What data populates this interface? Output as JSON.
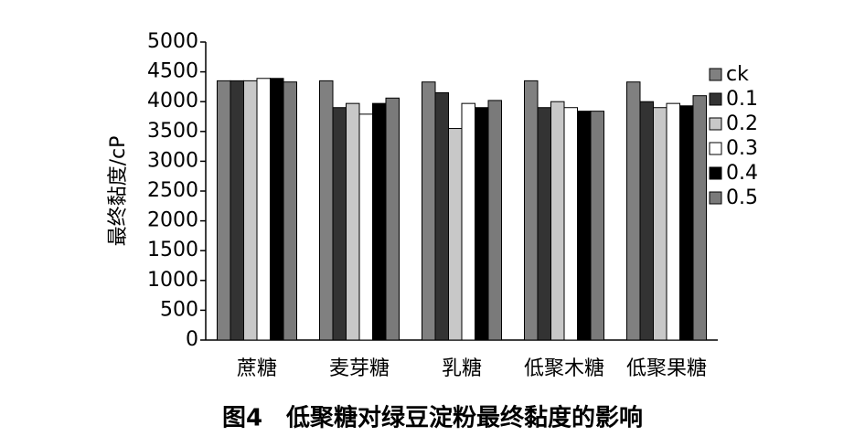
{
  "chart_data": {
    "type": "bar",
    "title": "图4　低聚糖对绿豆淀粉最终黏度的影响",
    "y_label": "最终黏度/cP",
    "categories": [
      "蔗糖",
      "麦芽糖",
      "乳糖",
      "低聚木糖",
      "低聚果糖"
    ],
    "series": [
      {
        "name": "ck",
        "color": "#808080",
        "values": [
          4350,
          4350,
          4330,
          4350,
          4330
        ]
      },
      {
        "name": "0.1",
        "color": "#333333",
        "values": [
          4350,
          3900,
          4150,
          3900,
          4000
        ]
      },
      {
        "name": "0.2",
        "color": "#c8c8c8",
        "values": [
          4350,
          3970,
          3550,
          4000,
          3900
        ]
      },
      {
        "name": "0.3",
        "color": "#ffffff",
        "values": [
          4390,
          3790,
          3970,
          3900,
          3970
        ]
      },
      {
        "name": "0.4",
        "color": "#000000",
        "values": [
          4390,
          3970,
          3900,
          3840,
          3930
        ]
      },
      {
        "name": "0.5",
        "color": "#7a7a7a",
        "values": [
          4330,
          4060,
          4020,
          3840,
          4100
        ]
      }
    ],
    "ylim": [
      0,
      5000
    ],
    "yticks": [
      0,
      500,
      1000,
      1500,
      2000,
      2500,
      3000,
      3500,
      4000,
      4500,
      5000
    ],
    "legend": "right"
  }
}
